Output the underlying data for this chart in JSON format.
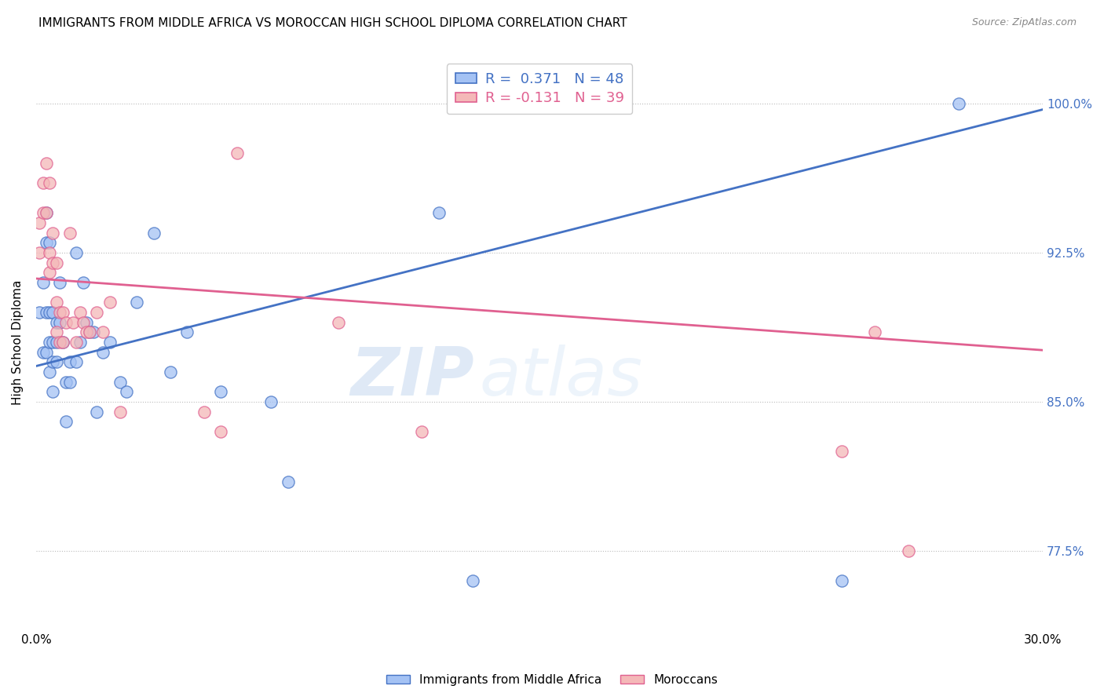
{
  "title": "IMMIGRANTS FROM MIDDLE AFRICA VS MOROCCAN HIGH SCHOOL DIPLOMA CORRELATION CHART",
  "source": "Source: ZipAtlas.com",
  "ylabel": "High School Diploma",
  "ytick_labels": [
    "77.5%",
    "85.0%",
    "92.5%",
    "100.0%"
  ],
  "ytick_values": [
    0.775,
    0.85,
    0.925,
    1.0
  ],
  "xmin": 0.0,
  "xmax": 0.3,
  "ymin": 0.735,
  "ymax": 1.025,
  "blue_R": "0.371",
  "blue_N": "48",
  "pink_R": "-0.131",
  "pink_N": "39",
  "blue_color": "#a4c2f4",
  "pink_color": "#f4b8b8",
  "blue_line_color": "#4472c4",
  "pink_line_color": "#e06090",
  "legend_label_blue": "Immigrants from Middle Africa",
  "legend_label_pink": "Moroccans",
  "watermark_zip": "ZIP",
  "watermark_atlas": "atlas",
  "blue_x": [
    0.001,
    0.002,
    0.002,
    0.003,
    0.003,
    0.003,
    0.003,
    0.004,
    0.004,
    0.004,
    0.004,
    0.005,
    0.005,
    0.005,
    0.005,
    0.006,
    0.006,
    0.006,
    0.007,
    0.007,
    0.008,
    0.009,
    0.009,
    0.01,
    0.01,
    0.012,
    0.012,
    0.013,
    0.014,
    0.015,
    0.016,
    0.017,
    0.018,
    0.02,
    0.022,
    0.025,
    0.027,
    0.03,
    0.035,
    0.04,
    0.045,
    0.055,
    0.07,
    0.075,
    0.12,
    0.13,
    0.24,
    0.275
  ],
  "blue_y": [
    0.895,
    0.91,
    0.875,
    0.945,
    0.93,
    0.895,
    0.875,
    0.93,
    0.895,
    0.88,
    0.865,
    0.895,
    0.88,
    0.87,
    0.855,
    0.89,
    0.88,
    0.87,
    0.91,
    0.89,
    0.88,
    0.84,
    0.86,
    0.87,
    0.86,
    0.925,
    0.87,
    0.88,
    0.91,
    0.89,
    0.885,
    0.885,
    0.845,
    0.875,
    0.88,
    0.86,
    0.855,
    0.9,
    0.935,
    0.865,
    0.885,
    0.855,
    0.85,
    0.81,
    0.945,
    0.76,
    0.76,
    1.0
  ],
  "pink_x": [
    0.001,
    0.001,
    0.002,
    0.002,
    0.003,
    0.003,
    0.004,
    0.004,
    0.004,
    0.005,
    0.005,
    0.006,
    0.006,
    0.006,
    0.007,
    0.007,
    0.008,
    0.008,
    0.009,
    0.01,
    0.011,
    0.012,
    0.013,
    0.014,
    0.015,
    0.016,
    0.018,
    0.02,
    0.022,
    0.025,
    0.05,
    0.055,
    0.06,
    0.09,
    0.115,
    0.125,
    0.24,
    0.25,
    0.26
  ],
  "pink_y": [
    0.94,
    0.925,
    0.96,
    0.945,
    0.97,
    0.945,
    0.96,
    0.925,
    0.915,
    0.935,
    0.92,
    0.92,
    0.9,
    0.885,
    0.895,
    0.88,
    0.895,
    0.88,
    0.89,
    0.935,
    0.89,
    0.88,
    0.895,
    0.89,
    0.885,
    0.885,
    0.895,
    0.885,
    0.9,
    0.845,
    0.845,
    0.835,
    0.975,
    0.89,
    0.835,
    1.0,
    0.825,
    0.885,
    0.775
  ],
  "blue_trend_x0": 0.0,
  "blue_trend_y0": 0.868,
  "blue_trend_x1": 0.3,
  "blue_trend_y1": 0.997,
  "pink_trend_x0": 0.0,
  "pink_trend_y0": 0.912,
  "pink_trend_x1": 0.3,
  "pink_trend_y1": 0.876
}
